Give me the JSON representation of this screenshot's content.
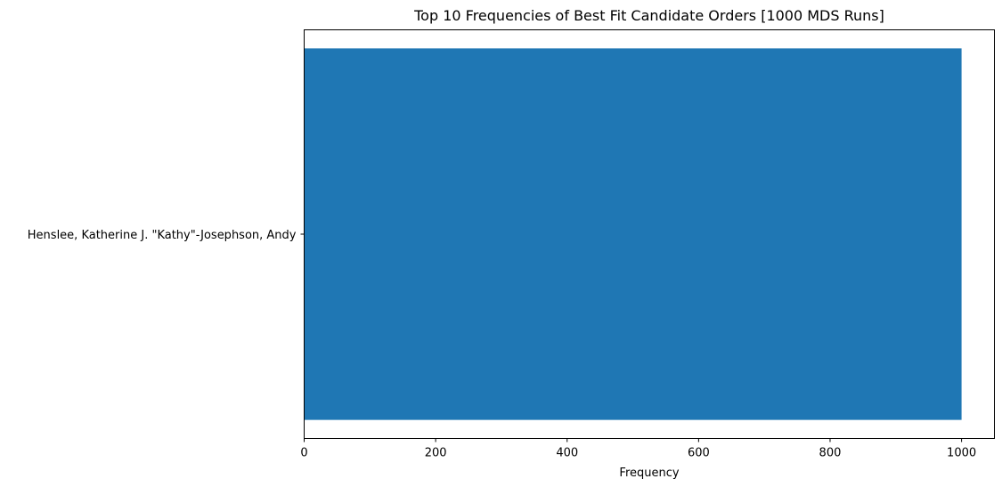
{
  "chart_data": {
    "type": "bar",
    "orientation": "horizontal",
    "title": "Top 10 Frequencies of Best Fit Candidate Orders [1000 MDS Runs]",
    "xlabel": "Frequency",
    "ylabel": "",
    "categories": [
      "Henslee, Katherine J. \"Kathy\"-Josephson, Andy"
    ],
    "values": [
      1000
    ],
    "xlim": [
      0,
      1050
    ],
    "xticks": [
      0,
      200,
      400,
      600,
      800,
      1000
    ],
    "grid": false,
    "legend": "none",
    "colors": {
      "bar": "#1f77b4",
      "axis": "#000000",
      "background": "#ffffff"
    }
  }
}
